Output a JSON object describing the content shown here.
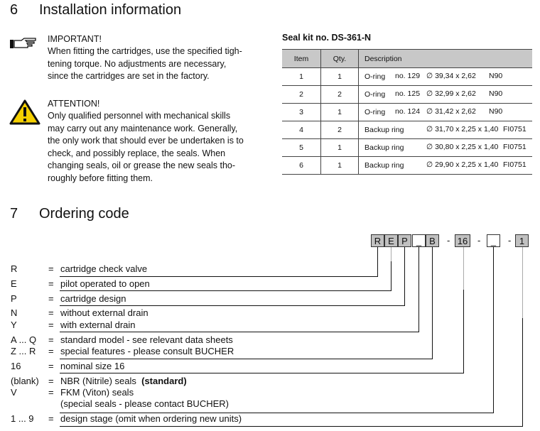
{
  "section6": {
    "number": "6",
    "title": "Installation information",
    "important": {
      "icon": "pointing-hand-icon",
      "heading": "IMPORTANT!",
      "lines": [
        "When fitting the cartridges, use the specified tigh-",
        "tening torque. No adjustments are necessary,",
        "since the cartridges are set in the factory."
      ]
    },
    "attention": {
      "icon": "warning-triangle-icon",
      "heading": "ATTENTION!",
      "lines": [
        "Only qualified personnel with mechanical skills",
        "may carry out any maintenance work. Generally,",
        "the only work that should ever be undertaken is to",
        "check, and possibly replace, the seals. When",
        "changing seals, oil or grease the new seals tho-",
        "roughly before fitting them."
      ]
    }
  },
  "seal_kit": {
    "title": "Seal kit no. DS-361-N",
    "headers": [
      "Item",
      "Qty.",
      "Description"
    ],
    "rows": [
      {
        "item": "1",
        "qty": "1",
        "type": "O-ring",
        "no": "no. 129",
        "dim": "∅ 39,34 x 2,62",
        "mat": "N90"
      },
      {
        "item": "2",
        "qty": "2",
        "type": "O-ring",
        "no": "no. 125",
        "dim": "∅ 32,99 x 2,62",
        "mat": "N90"
      },
      {
        "item": "3",
        "qty": "1",
        "type": "O-ring",
        "no": "no. 124",
        "dim": "∅ 31,42 x 2,62",
        "mat": "N90"
      },
      {
        "item": "4",
        "qty": "2",
        "type": "Backup ring",
        "no": "",
        "dim": "∅ 31,70 x 2,25 x 1,40",
        "mat": "FI0751"
      },
      {
        "item": "5",
        "qty": "1",
        "type": "Backup ring",
        "no": "",
        "dim": "∅ 30,80 x 2,25 x 1,40",
        "mat": "FI0751"
      },
      {
        "item": "6",
        "qty": "1",
        "type": "Backup ring",
        "no": "",
        "dim": "∅ 29,90 x 2,25 x 1,40",
        "mat": "FI0751"
      }
    ]
  },
  "section7": {
    "number": "7",
    "title": "Ordering code",
    "code": [
      "R",
      "E",
      "P",
      "_",
      "B",
      "-",
      "16",
      "-",
      "_",
      "-",
      "1"
    ],
    "rows": [
      {
        "key": "R",
        "eq": "=",
        "text": "cartridge check valve"
      },
      {
        "key": "E",
        "eq": "=",
        "text": "pilot operated to open"
      },
      {
        "key": "P",
        "eq": "=",
        "text": "cartridge design"
      },
      {
        "key": "N",
        "eq": "=",
        "text": "without external drain"
      },
      {
        "key": "Y",
        "eq": "=",
        "text": "with external drain"
      },
      {
        "key": "A ... Q",
        "eq": "=",
        "text": "standard model - see relevant data sheets"
      },
      {
        "key": "Z ... R",
        "eq": "=",
        "text": "special features - please consult BUCHER"
      },
      {
        "key": "16",
        "eq": "=",
        "text": "nominal size 16"
      },
      {
        "key": "(blank)",
        "eq": "=",
        "text": "NBR (Nitrile) seals  ",
        "bold": "(standard)"
      },
      {
        "key": "V",
        "eq": "=",
        "text": "FKM (Viton) seals"
      },
      {
        "key": "",
        "eq": "",
        "text": "(special seals - please contact BUCHER)"
      },
      {
        "key": "1 ... 9",
        "eq": "=",
        "text": "design stage (omit when ordering new units)"
      }
    ]
  }
}
